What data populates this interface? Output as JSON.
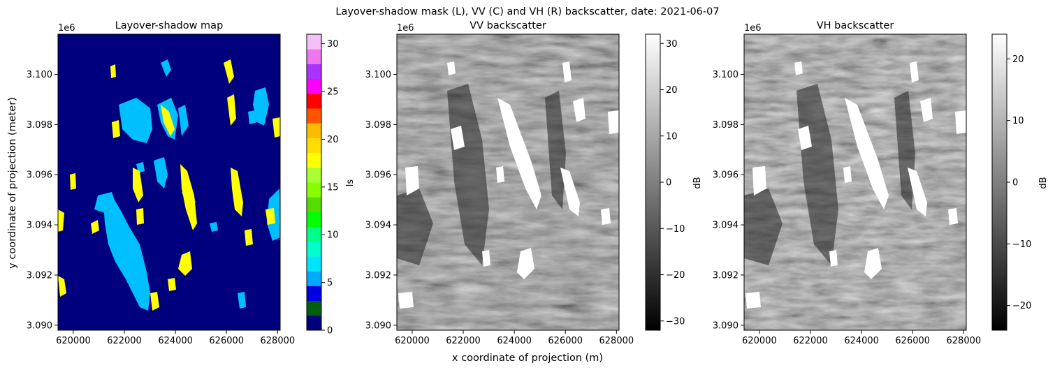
{
  "figure": {
    "suptitle": "Layover-shadow mask (L), VV (C) and VH (R) backscatter, date: 2021-06-07",
    "xlabel": "x coordinate of projection (m)",
    "ylabel": "y coordinate of projection (meter)"
  },
  "chart_data": [
    {
      "type": "heatmap",
      "title": "Layover-shadow map",
      "x_ticks": [
        "620000",
        "622000",
        "624000",
        "626000",
        "628000"
      ],
      "y_ticks": [
        "3.090",
        "3.092",
        "3.094",
        "3.096",
        "3.098",
        "3.100"
      ],
      "y_offset_label": "1e6",
      "xlim": [
        619400,
        628100
      ],
      "ylim": [
        3089800,
        3101600
      ],
      "colorbar": {
        "label": "ls",
        "ticks": [
          "0",
          "5",
          "10",
          "15",
          "20",
          "25",
          "30"
        ],
        "range": [
          0,
          31
        ],
        "colors": [
          "#00007f",
          "#005f0f",
          "#0000e0",
          "#00aaff",
          "#00e5ff",
          "#00ffcc",
          "#00ff88",
          "#00ff00",
          "#55dd00",
          "#88ff00",
          "#aaff33",
          "#ffff00",
          "#ffdd00",
          "#ffbb00",
          "#ff5500",
          "#ff0000",
          "#ff00ff",
          "#aa33ff",
          "#ee77ee",
          "#f5c0f5"
        ]
      },
      "classes_visible": [
        {
          "value": 0,
          "color": "#00007f",
          "meaning": ""
        },
        {
          "value": 6,
          "color": "#00bfff",
          "meaning": ""
        },
        {
          "value": 16,
          "color": "#ffff00",
          "meaning": ""
        }
      ]
    },
    {
      "type": "heatmap",
      "title": "VV backscatter",
      "x_ticks": [
        "620000",
        "622000",
        "624000",
        "626000",
        "628000"
      ],
      "y_ticks": [
        "3.090",
        "3.092",
        "3.094",
        "3.096",
        "3.098",
        "3.100"
      ],
      "y_offset_label": "1e6",
      "xlim": [
        619400,
        628100
      ],
      "ylim": [
        3089800,
        3101600
      ],
      "colorbar": {
        "label": "dB",
        "ticks": [
          "−30",
          "−20",
          "−10",
          "0",
          "10",
          "20",
          "30"
        ],
        "range": [
          -32,
          32
        ],
        "colormap": "gray"
      }
    },
    {
      "type": "heatmap",
      "title": "VH backscatter",
      "x_ticks": [
        "620000",
        "622000",
        "624000",
        "626000",
        "628000"
      ],
      "y_ticks": [
        "3.090",
        "3.092",
        "3.094",
        "3.096",
        "3.098",
        "3.100"
      ],
      "y_offset_label": "1e6",
      "xlim": [
        619400,
        628100
      ],
      "ylim": [
        3089800,
        3101600
      ],
      "colorbar": {
        "label": "dB",
        "ticks": [
          "−20",
          "−10",
          "0",
          "10",
          "20"
        ],
        "range": [
          -24,
          24
        ],
        "colormap": "gray"
      }
    }
  ]
}
